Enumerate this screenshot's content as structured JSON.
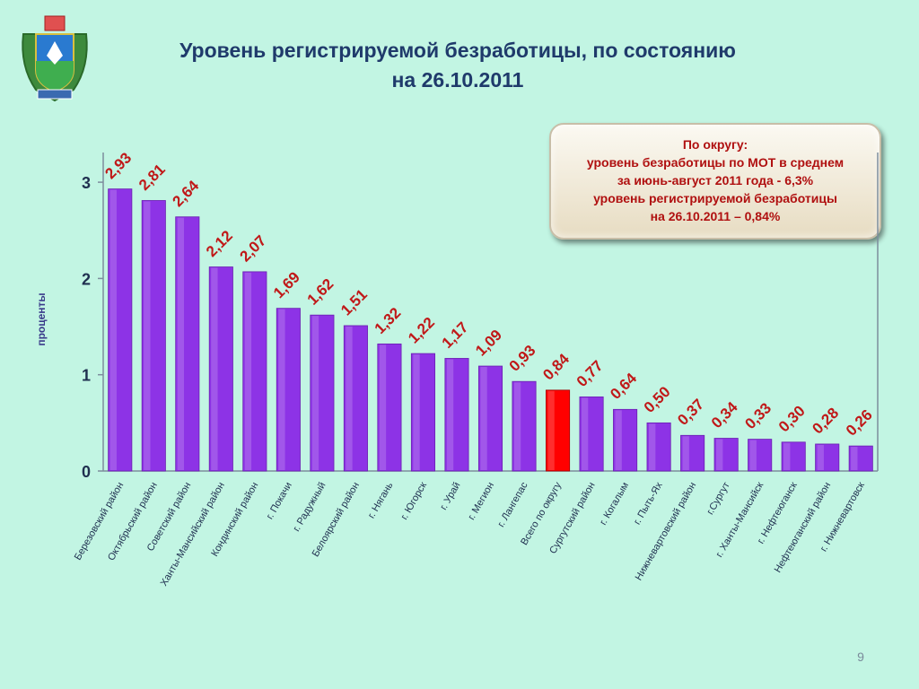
{
  "slide": {
    "title_line1": "Уровень регистрируемой безработицы, по состоянию",
    "title_line2": "на 26.10.2011",
    "page_number": "9"
  },
  "note": {
    "line1": "По округу:",
    "line2": "уровень безработицы по МОТ в среднем",
    "line3": "за июнь-август 2011 года -  6,3%",
    "line4": "уровень регистрируемой безработицы",
    "line5": "на 26.10.2011  – 0,84%"
  },
  "colors": {
    "bar": "#8d33e6",
    "highlight_bar": "#ff0000",
    "data_label": "#c01818",
    "background": "#c2f5e3"
  },
  "chart_data": {
    "type": "bar",
    "title": "",
    "xlabel": "",
    "ylabel": "проценты",
    "ylim": [
      0,
      3.2
    ],
    "yticks": [
      "0",
      "1",
      "2",
      "3"
    ],
    "grid": false,
    "highlight_category": "Всего по округу",
    "categories": [
      "Березовский район",
      "Октябрьский район",
      "Советский район",
      "Ханты-Мансийский район",
      "Кондинский район",
      "г. Покачи",
      "г. Радужный",
      "Белоярский район",
      "г. Нягань",
      "г. Югорск",
      "г. Урай",
      "г. Мегион",
      "г. Лангепас",
      "Всего по округу",
      "Сургутский район",
      "г. Когалым",
      "г. Пыть-Ях",
      "Нижневартовский район",
      "г.Сургут",
      "г. Ханты-Мансийск",
      "г. Нефтеюганск",
      "Нефтеюганский район",
      "г. Нижневартовск"
    ],
    "values": [
      2.93,
      2.81,
      2.64,
      2.12,
      2.07,
      1.69,
      1.62,
      1.51,
      1.32,
      1.22,
      1.17,
      1.09,
      0.93,
      0.84,
      0.77,
      0.64,
      0.5,
      0.37,
      0.34,
      0.33,
      0.3,
      0.28,
      0.26
    ],
    "value_labels": [
      "2,93",
      "2,81",
      "2,64",
      "2,12",
      "2,07",
      "1,69",
      "1,62",
      "1,51",
      "1,32",
      "1,22",
      "1,17",
      "1,09",
      "0,93",
      "0,84",
      "0,77",
      "0,64",
      "0,50",
      "0,37",
      "0,34",
      "0,33",
      "0,30",
      "0,28",
      "0,26"
    ]
  }
}
